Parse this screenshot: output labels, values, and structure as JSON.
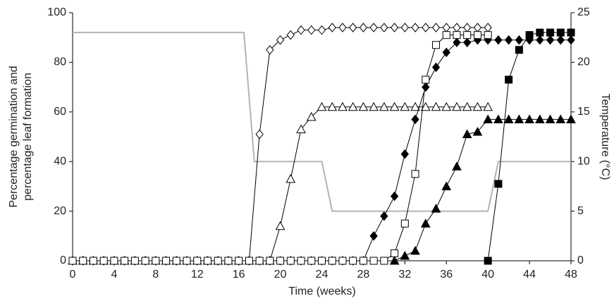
{
  "chart_data": {
    "type": "line",
    "xlabel": "Time (weeks)",
    "ylabel": [
      "Percentage germination and",
      "percentage leaf formation"
    ],
    "y2label": "Temperature (°C)",
    "x": [
      0,
      1,
      2,
      3,
      4,
      5,
      6,
      7,
      8,
      9,
      10,
      11,
      12,
      13,
      14,
      15,
      16,
      17,
      18,
      19,
      20,
      21,
      22,
      23,
      24,
      25,
      26,
      27,
      28,
      29,
      30,
      31,
      32,
      33,
      34,
      35,
      36,
      37,
      38,
      39,
      40,
      41,
      42,
      43,
      44,
      45,
      46,
      47,
      48
    ],
    "xlim": [
      0,
      48
    ],
    "xticks": [
      0,
      4,
      8,
      12,
      16,
      20,
      24,
      28,
      32,
      36,
      40,
      44,
      48
    ],
    "ylim": [
      0,
      100
    ],
    "yticks": [
      0,
      20,
      40,
      60,
      80,
      100
    ],
    "y2lim": [
      0,
      25
    ],
    "y2ticks": [
      0,
      5,
      10,
      15,
      20,
      25
    ],
    "series": [
      {
        "color": "#000000",
        "marker": "diamond",
        "filled": false,
        "values": [
          0,
          0,
          0,
          0,
          0,
          0,
          0,
          0,
          0,
          0,
          0,
          0,
          0,
          0,
          0,
          0,
          0,
          0,
          51,
          85,
          89,
          91,
          93,
          93,
          93,
          94,
          94,
          94,
          94,
          94,
          94,
          94,
          94,
          94,
          94,
          94,
          94,
          94,
          94,
          94,
          94,
          null,
          null,
          null,
          null,
          null,
          null,
          null,
          null
        ]
      },
      {
        "color": "#000000",
        "marker": "triangle",
        "filled": false,
        "values": [
          0,
          0,
          0,
          0,
          0,
          0,
          0,
          0,
          0,
          0,
          0,
          0,
          0,
          0,
          0,
          0,
          0,
          0,
          0,
          0,
          14,
          33,
          53,
          58,
          62,
          62,
          62,
          62,
          62,
          62,
          62,
          62,
          62,
          62,
          62,
          62,
          62,
          62,
          62,
          62,
          62,
          null,
          null,
          null,
          null,
          null,
          null,
          null,
          null
        ]
      },
      {
        "color": "#000000",
        "marker": "diamond",
        "filled": true,
        "values": [
          0,
          0,
          0,
          0,
          0,
          0,
          0,
          0,
          0,
          0,
          0,
          0,
          0,
          0,
          0,
          0,
          0,
          0,
          0,
          0,
          0,
          0,
          0,
          0,
          0,
          0,
          0,
          0,
          0,
          10,
          18,
          26,
          43,
          57,
          70,
          78,
          84,
          88,
          88,
          89,
          89,
          89,
          89,
          89,
          89,
          89,
          89,
          89,
          89
        ]
      },
      {
        "color": "#000000",
        "marker": "square",
        "filled": false,
        "values": [
          0,
          0,
          0,
          0,
          0,
          0,
          0,
          0,
          0,
          0,
          0,
          0,
          0,
          0,
          0,
          0,
          0,
          0,
          0,
          0,
          0,
          0,
          0,
          0,
          0,
          0,
          0,
          0,
          0,
          0,
          0,
          3,
          15,
          35,
          73,
          87,
          91,
          91,
          91,
          91,
          91,
          null,
          null,
          null,
          null,
          null,
          null,
          null,
          null
        ]
      },
      {
        "color": "#000000",
        "marker": "triangle",
        "filled": true,
        "values": [
          null,
          null,
          null,
          null,
          null,
          null,
          null,
          null,
          null,
          null,
          null,
          null,
          null,
          null,
          null,
          null,
          null,
          null,
          null,
          null,
          null,
          null,
          null,
          null,
          null,
          null,
          null,
          null,
          null,
          null,
          null,
          0,
          2,
          4,
          15,
          21,
          30,
          38,
          51,
          52,
          57,
          57,
          57,
          57,
          57,
          57,
          57,
          57,
          57
        ]
      },
      {
        "color": "#000000",
        "marker": "square",
        "filled": true,
        "values": [
          null,
          null,
          null,
          null,
          null,
          null,
          null,
          null,
          null,
          null,
          null,
          null,
          null,
          null,
          null,
          null,
          null,
          null,
          null,
          null,
          null,
          null,
          null,
          null,
          null,
          null,
          null,
          null,
          null,
          null,
          null,
          null,
          null,
          null,
          null,
          null,
          null,
          null,
          null,
          null,
          0,
          31,
          73,
          85,
          91,
          92,
          92,
          92,
          92
        ]
      },
      {
        "color": "#b3b3b3",
        "axis": "y2",
        "x": [
          0,
          16.5,
          17.5,
          24,
          25,
          40,
          41,
          48
        ],
        "values": [
          23,
          23,
          10,
          10,
          5,
          5,
          10,
          10
        ]
      }
    ]
  }
}
